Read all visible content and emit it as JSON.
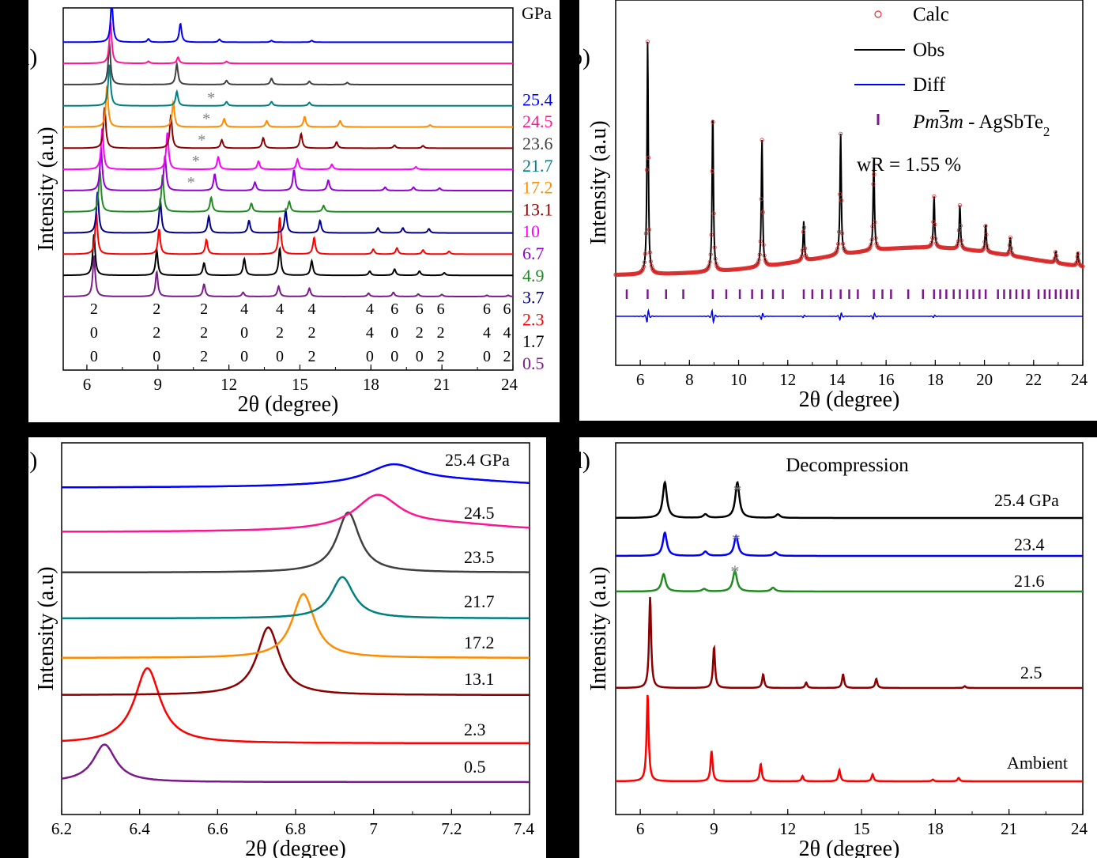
{
  "chart_data": [
    {
      "panel": "a",
      "type": "line",
      "panel_label": "a)",
      "xlabel": "2θ (degree)",
      "ylabel": "Intensity (a.u)",
      "xlim": [
        5,
        24
      ],
      "xticks": [
        "6",
        "9",
        "12",
        "15",
        "18",
        "21",
        "24"
      ],
      "legend_title": "GPa",
      "series": [
        {
          "name": "0.5",
          "color": "#7b1a8c",
          "peaks": [
            [
              6.3,
              1.0
            ],
            [
              8.95,
              0.6
            ],
            [
              10.95,
              0.3
            ],
            [
              12.6,
              0.1
            ],
            [
              14.1,
              0.25
            ],
            [
              15.4,
              0.2
            ],
            [
              17.9,
              0.08
            ],
            [
              18.95,
              0.1
            ],
            [
              20.0,
              0.06
            ],
            [
              21.0,
              0.05
            ],
            [
              22.9,
              0.03
            ],
            [
              23.8,
              0.03
            ]
          ]
        },
        {
          "name": "1.7",
          "color": "#000000",
          "peaks": [
            [
              6.3,
              1.0
            ],
            [
              8.95,
              0.6
            ],
            [
              10.95,
              0.3
            ],
            [
              12.65,
              0.4
            ],
            [
              14.15,
              0.65
            ],
            [
              15.5,
              0.35
            ],
            [
              17.95,
              0.1
            ],
            [
              19.0,
              0.15
            ],
            [
              20.05,
              0.1
            ],
            [
              21.1,
              0.06
            ]
          ]
        },
        {
          "name": "2.3",
          "color": "#ff0000",
          "peaks": [
            [
              6.4,
              1.0
            ],
            [
              9.05,
              0.6
            ],
            [
              11.05,
              0.35
            ],
            [
              14.15,
              0.9
            ],
            [
              15.6,
              0.4
            ],
            [
              18.1,
              0.12
            ],
            [
              19.1,
              0.15
            ],
            [
              20.2,
              0.1
            ],
            [
              21.3,
              0.07
            ]
          ]
        },
        {
          "name": "3.7",
          "color": "#00008b",
          "peaks": [
            [
              6.45,
              1.0
            ],
            [
              9.1,
              0.8
            ],
            [
              11.15,
              0.4
            ],
            [
              12.85,
              0.3
            ],
            [
              14.4,
              0.55
            ],
            [
              15.85,
              0.3
            ],
            [
              18.3,
              0.12
            ],
            [
              19.35,
              0.12
            ],
            [
              20.45,
              0.1
            ]
          ]
        },
        {
          "name": "4.9",
          "color": "#228b22",
          "peaks": [
            [
              6.55,
              1.0
            ],
            [
              9.2,
              0.9
            ],
            [
              11.25,
              0.35
            ],
            [
              12.95,
              0.2
            ],
            [
              14.55,
              0.25
            ],
            [
              16.0,
              0.15
            ]
          ]
        },
        {
          "name": "6.7",
          "color": "#9400d3",
          "peaks": [
            [
              6.6,
              1.0
            ],
            [
              9.3,
              0.85
            ],
            [
              11.4,
              0.4
            ],
            [
              13.1,
              0.2
            ],
            [
              14.75,
              0.5
            ],
            [
              16.2,
              0.25
            ],
            [
              18.6,
              0.08
            ],
            [
              19.8,
              0.08
            ],
            [
              20.9,
              0.06
            ]
          ]
        },
        {
          "name": "10",
          "color": "#ff00ff",
          "peaks": [
            [
              6.65,
              1.0
            ],
            [
              9.4,
              0.9
            ],
            [
              11.55,
              0.3
            ],
            [
              13.25,
              0.2
            ],
            [
              14.9,
              0.25
            ],
            [
              16.35,
              0.12
            ],
            [
              19.9,
              0.06
            ]
          ]
        },
        {
          "name": "13.1",
          "color": "#8b0000",
          "peaks": [
            [
              6.75,
              1.0
            ],
            [
              9.55,
              0.8
            ],
            [
              11.7,
              0.2
            ],
            [
              13.45,
              0.25
            ],
            [
              15.05,
              0.35
            ],
            [
              16.55,
              0.15
            ],
            [
              19.0,
              0.07
            ],
            [
              20.2,
              0.06
            ]
          ]
        },
        {
          "name": "17.2",
          "color": "#ff8c00",
          "peaks": [
            [
              6.85,
              1.0
            ],
            [
              9.65,
              0.6
            ],
            [
              11.8,
              0.2
            ],
            [
              13.6,
              0.15
            ],
            [
              15.2,
              0.25
            ],
            [
              16.7,
              0.15
            ],
            [
              20.5,
              0.05
            ]
          ]
        },
        {
          "name": "21.7",
          "color": "#008080",
          "peaks": [
            [
              6.95,
              1.0
            ],
            [
              9.8,
              0.35
            ],
            [
              11.9,
              0.1
            ],
            [
              13.8,
              0.1
            ],
            [
              15.4,
              0.08
            ]
          ]
        },
        {
          "name": "23.6",
          "color": "#404040",
          "peaks": [
            [
              6.95,
              1.0
            ],
            [
              9.8,
              0.5
            ],
            [
              11.9,
              0.1
            ],
            [
              13.8,
              0.15
            ],
            [
              15.4,
              0.08
            ],
            [
              17.0,
              0.05
            ]
          ]
        },
        {
          "name": "24.5",
          "color": "#ff1493",
          "peaks": [
            [
              7.0,
              1.0
            ],
            [
              9.85,
              0.15
            ],
            [
              8.6,
              0.05
            ],
            [
              11.9,
              0.05
            ]
          ]
        },
        {
          "name": "25.4",
          "color": "#0000ff",
          "peaks": [
            [
              7.05,
              1.0
            ],
            [
              9.95,
              0.45
            ],
            [
              8.6,
              0.08
            ],
            [
              11.6,
              0.07
            ],
            [
              13.8,
              0.04
            ],
            [
              15.5,
              0.04
            ]
          ]
        }
      ],
      "impurity_marks": [
        {
          "x": 10.4,
          "pressure": "6.7"
        },
        {
          "x": 10.6,
          "pressure": "10"
        },
        {
          "x": 10.85,
          "pressure": "13.1"
        },
        {
          "x": 11.05,
          "pressure": "17.2"
        },
        {
          "x": 11.25,
          "pressure": "21.7"
        }
      ],
      "impurity_symbol": "*",
      "hkl": [
        {
          "x": 6.3,
          "label": [
            "2",
            "0",
            "0"
          ]
        },
        {
          "x": 8.95,
          "label": [
            "2",
            "2",
            "0"
          ]
        },
        {
          "x": 10.95,
          "label": [
            "2",
            "2",
            "2"
          ]
        },
        {
          "x": 12.65,
          "label": [
            "4",
            "0",
            "0"
          ]
        },
        {
          "x": 14.15,
          "label": [
            "4",
            "2",
            "0"
          ]
        },
        {
          "x": 15.5,
          "label": [
            "4",
            "2",
            "2"
          ]
        },
        {
          "x": 17.95,
          "label": [
            "4",
            "4",
            "0"
          ]
        },
        {
          "x": 19.0,
          "label": [
            "6",
            "0",
            "0"
          ]
        },
        {
          "x": 20.05,
          "label": [
            "6",
            "2",
            "0"
          ]
        },
        {
          "x": 20.95,
          "label": [
            "6",
            "2",
            "2"
          ]
        },
        {
          "x": 22.9,
          "label": [
            "6",
            "4",
            "0"
          ]
        },
        {
          "x": 23.75,
          "label": [
            "6",
            "4",
            "2"
          ]
        }
      ]
    },
    {
      "panel": "b",
      "type": "line",
      "panel_label": "b)",
      "xlabel": "2θ (degree)",
      "ylabel": "Intensity (a.u)",
      "xlim": [
        5,
        24
      ],
      "xticks": [
        "6",
        "8",
        "10",
        "12",
        "14",
        "16",
        "18",
        "20",
        "22",
        "24"
      ],
      "legend": [
        {
          "name": "Calc",
          "color": "#e03030",
          "style": "circle"
        },
        {
          "name": "Obs",
          "color": "#000000",
          "style": "line"
        },
        {
          "name": "Diff",
          "color": "#0000ff",
          "style": "line"
        },
        {
          "name_parts": [
            "Pm",
            "3",
            "m",
            " - AgSbTe",
            "2"
          ],
          "color": "#7b1a8c",
          "style": "tick"
        }
      ],
      "annotation": "wR = 1.55 %",
      "peaks": [
        [
          6.3,
          1.0
        ],
        [
          8.95,
          0.69
        ],
        [
          10.95,
          0.55
        ],
        [
          12.65,
          0.17
        ],
        [
          14.15,
          0.52
        ],
        [
          15.5,
          0.39
        ],
        [
          17.95,
          0.22
        ],
        [
          19.0,
          0.19
        ],
        [
          20.05,
          0.12
        ],
        [
          21.05,
          0.08
        ],
        [
          22.9,
          0.05
        ],
        [
          23.8,
          0.06
        ]
      ],
      "diff_peaks": [
        [
          6.3,
          0.1
        ],
        [
          8.95,
          -0.1
        ],
        [
          10.95,
          0.05
        ],
        [
          12.65,
          0.02
        ],
        [
          14.15,
          0.06
        ],
        [
          15.5,
          0.05
        ],
        [
          17.95,
          0.02
        ]
      ],
      "bragg_ticks": [
        5.45,
        6.3,
        7.05,
        7.75,
        8.95,
        9.5,
        10.05,
        10.55,
        10.95,
        11.4,
        11.8,
        12.65,
        13.0,
        13.4,
        13.75,
        14.15,
        14.5,
        14.85,
        15.5,
        15.85,
        16.2,
        16.9,
        17.5,
        17.95,
        18.2,
        18.45,
        18.75,
        19.0,
        19.3,
        19.55,
        19.8,
        20.05,
        20.55,
        20.8,
        21.05,
        21.3,
        21.55,
        21.8,
        22.2,
        22.45,
        22.65,
        22.9,
        23.1,
        23.35,
        23.55,
        23.8
      ]
    },
    {
      "panel": "c",
      "type": "line",
      "panel_label": "c)",
      "xlabel": "2θ (degree)",
      "ylabel": "Intensity (a.u)",
      "xlim": [
        6.2,
        7.4
      ],
      "xticks": [
        "6.2",
        "6.4",
        "6.6",
        "6.8",
        "7",
        "7.2",
        "7.4"
      ],
      "series": [
        {
          "name": "0.5",
          "color": "#7b1a8c",
          "center": 6.31,
          "width": 0.035,
          "height": 0.5
        },
        {
          "name": "2.3",
          "color": "#ff0000",
          "center": 6.42,
          "width": 0.04,
          "height": 1.0
        },
        {
          "name": "13.1",
          "color": "#8b0000",
          "center": 6.73,
          "width": 0.035,
          "height": 0.9
        },
        {
          "name": "17.2",
          "color": "#ff8c00",
          "center": 6.82,
          "width": 0.035,
          "height": 0.85
        },
        {
          "name": "21.7",
          "color": "#008080",
          "center": 6.92,
          "width": 0.035,
          "height": 0.55
        },
        {
          "name": "23.5",
          "color": "#404040",
          "center": 6.935,
          "width": 0.035,
          "height": 0.8
        },
        {
          "name": "24.5",
          "color": "#ff1493",
          "center": 7.01,
          "width": 0.07,
          "height": 0.45
        },
        {
          "name": "25.4 GPa",
          "color": "#0000ff",
          "center": 7.05,
          "width": 0.08,
          "height": 0.25
        }
      ]
    },
    {
      "panel": "d",
      "type": "line",
      "panel_label": "d)",
      "title": "Decompression",
      "xlabel": "2θ (degree)",
      "ylabel": "Intensity (a.u)",
      "xlim": [
        5,
        24
      ],
      "xticks": [
        "6",
        "9",
        "12",
        "15",
        "18",
        "21",
        "24"
      ],
      "impurity_symbol": "*",
      "series": [
        {
          "name": "Ambient",
          "color": "#ff0000",
          "peaks": [
            [
              6.3,
              1.0
            ],
            [
              8.9,
              0.35
            ],
            [
              10.9,
              0.2
            ],
            [
              12.6,
              0.06
            ],
            [
              14.1,
              0.13
            ],
            [
              15.45,
              0.08
            ],
            [
              17.9,
              0.02
            ],
            [
              18.95,
              0.04
            ]
          ]
        },
        {
          "name": "2.5",
          "color": "#8b0000",
          "peaks": [
            [
              6.4,
              1.0
            ],
            [
              9.0,
              0.45
            ],
            [
              11.0,
              0.15
            ],
            [
              12.75,
              0.06
            ],
            [
              14.25,
              0.15
            ],
            [
              15.6,
              0.1
            ],
            [
              19.2,
              0.02
            ]
          ]
        },
        {
          "name": "21.6",
          "color": "#228b22",
          "peaks": [
            [
              6.95,
              0.55
            ],
            [
              9.85,
              0.65
            ],
            [
              8.6,
              0.08
            ],
            [
              11.4,
              0.12
            ]
          ]
        },
        {
          "name": "23.4",
          "color": "#0000ff",
          "peaks": [
            [
              7.0,
              0.65
            ],
            [
              9.9,
              0.55
            ],
            [
              8.65,
              0.12
            ],
            [
              11.5,
              0.1
            ]
          ]
        },
        {
          "name": "25.4 GPa",
          "color": "#000000",
          "peaks": [
            [
              7.0,
              1.0
            ],
            [
              9.95,
              1.0
            ],
            [
              8.65,
              0.1
            ],
            [
              11.6,
              0.1
            ]
          ]
        }
      ]
    }
  ]
}
